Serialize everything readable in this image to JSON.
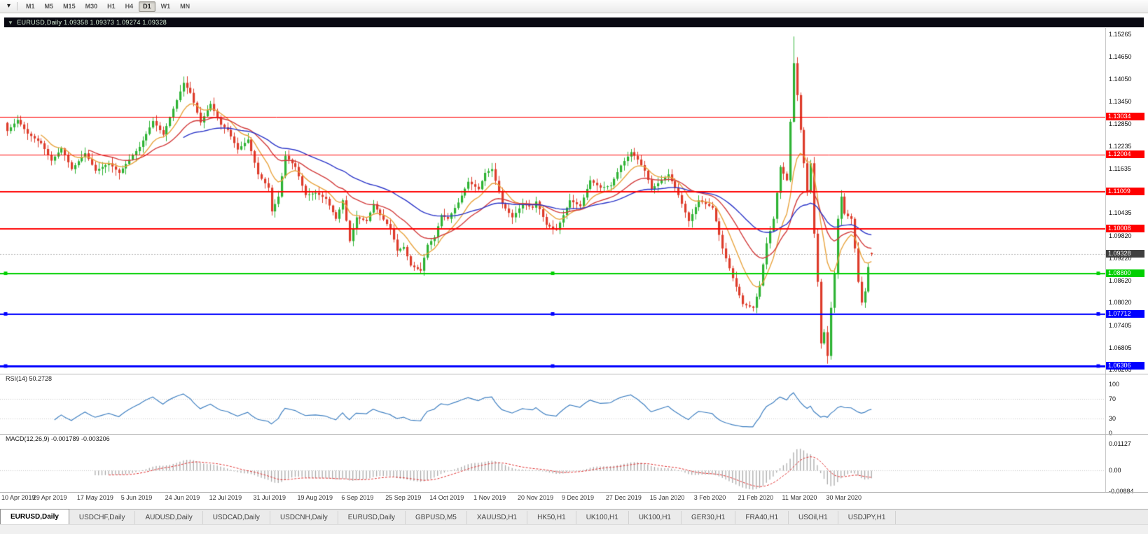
{
  "icons": {
    "toolbar_dropdown": "▾",
    "chart_dropdown": "▼"
  },
  "toolbar": {
    "timeframes": [
      "M1",
      "M5",
      "M15",
      "M30",
      "H1",
      "H4",
      "D1",
      "W1",
      "MN"
    ],
    "active_timeframe": "D1"
  },
  "chart_title": "EURUSD,Daily 1.09358 1.09373 1.09274 1.09328",
  "chart_data": {
    "type": "candlestick",
    "symbol": "EURUSD",
    "timeframe": "Daily",
    "last_bar": {
      "open": 1.09358,
      "high": 1.09373,
      "low": 1.09274,
      "close": 1.09328
    },
    "bar_count": 256,
    "price_range": [
      1.061,
      1.1543
    ],
    "candle_up_color": "#2eb334",
    "candle_down_color": "#dd3b2a",
    "y_ticks": [
      "1.15265",
      "1.14650",
      "1.14050",
      "1.13450",
      "1.12850",
      "1.12235",
      "1.11635",
      "1.11035",
      "1.10435",
      "1.09820",
      "1.09220",
      "1.08620",
      "1.08020",
      "1.07405",
      "1.06805",
      "1.06205"
    ],
    "x_labels": [
      {
        "text": "10 Apr 2019",
        "bar": 0
      },
      {
        "text": "29 Apr 2019",
        "bar": 13
      },
      {
        "text": "17 May 2019",
        "bar": 26
      },
      {
        "text": "5 Jun 2019",
        "bar": 39
      },
      {
        "text": "24 Jun 2019",
        "bar": 52
      },
      {
        "text": "12 Jul 2019",
        "bar": 65
      },
      {
        "text": "31 Jul 2019",
        "bar": 78
      },
      {
        "text": "19 Aug 2019",
        "bar": 91
      },
      {
        "text": "6 Sep 2019",
        "bar": 104
      },
      {
        "text": "25 Sep 2019",
        "bar": 117
      },
      {
        "text": "14 Oct 2019",
        "bar": 130
      },
      {
        "text": "1 Nov 2019",
        "bar": 143
      },
      {
        "text": "20 Nov 2019",
        "bar": 156
      },
      {
        "text": "9 Dec 2019",
        "bar": 169
      },
      {
        "text": "27 Dec 2019",
        "bar": 182
      },
      {
        "text": "15 Jan 2020",
        "bar": 195
      },
      {
        "text": "3 Feb 2020",
        "bar": 208
      },
      {
        "text": "21 Feb 2020",
        "bar": 221
      },
      {
        "text": "11 Mar 2020",
        "bar": 234
      },
      {
        "text": "30 Mar 2020",
        "bar": 247
      }
    ],
    "horizontal_lines": [
      {
        "value": 1.13034,
        "label": "1.13034",
        "color": "#ff0000",
        "width": 1,
        "handles": false
      },
      {
        "value": 1.12004,
        "label": "1.12004",
        "color": "#ff0000",
        "width": 1,
        "handles": false
      },
      {
        "value": 1.11009,
        "label": "1.11009",
        "color": "#ff0000",
        "width": 2,
        "handles": false
      },
      {
        "value": 1.10008,
        "label": "1.10008",
        "color": "#ff0000",
        "width": 2,
        "handles": false
      },
      {
        "value": 1.088,
        "label": "1.08800",
        "color": "#00d000",
        "width": 2,
        "handles": true
      },
      {
        "value": 1.07712,
        "label": "1.07712",
        "color": "#0000ff",
        "width": 2,
        "handles": true
      },
      {
        "value": 1.06306,
        "label": "1.06306",
        "color": "#0000ff",
        "width": 3,
        "handles": true
      }
    ],
    "bid": {
      "value": 1.09328,
      "label": "1.09328",
      "badge_color": "#3f3f3f"
    },
    "moving_averages": [
      {
        "period": 10,
        "color": "#e8a33d"
      },
      {
        "period": 24,
        "color": "#d23b3b"
      },
      {
        "period": 52,
        "color": "#2b35c8"
      }
    ],
    "close_waypoints": [
      [
        0,
        1.1265
      ],
      [
        3,
        1.1295
      ],
      [
        6,
        1.1258
      ],
      [
        10,
        1.1232
      ],
      [
        13,
        1.1185
      ],
      [
        16,
        1.1218
      ],
      [
        19,
        1.1162
      ],
      [
        23,
        1.1205
      ],
      [
        26,
        1.1158
      ],
      [
        30,
        1.1178
      ],
      [
        33,
        1.1152
      ],
      [
        36,
        1.1188
      ],
      [
        39,
        1.1222
      ],
      [
        43,
        1.1292
      ],
      [
        46,
        1.1255
      ],
      [
        49,
        1.1325
      ],
      [
        52,
        1.1395
      ],
      [
        54,
        1.1368
      ],
      [
        57,
        1.1288
      ],
      [
        60,
        1.1338
      ],
      [
        63,
        1.1282
      ],
      [
        65,
        1.1268
      ],
      [
        68,
        1.1215
      ],
      [
        71,
        1.1242
      ],
      [
        74,
        1.1148
      ],
      [
        77,
        1.1112
      ],
      [
        78,
        1.1048
      ],
      [
        80,
        1.1088
      ],
      [
        82,
        1.1198
      ],
      [
        85,
        1.1168
      ],
      [
        88,
        1.1092
      ],
      [
        91,
        1.1098
      ],
      [
        94,
        1.1082
      ],
      [
        97,
        1.1028
      ],
      [
        99,
        1.1078
      ],
      [
        101,
        1.0968
      ],
      [
        103,
        1.1032
      ],
      [
        106,
        1.1022
      ],
      [
        108,
        1.1068
      ],
      [
        110,
        1.1038
      ],
      [
        113,
        1.1002
      ],
      [
        115,
        1.0942
      ],
      [
        117,
        1.0952
      ],
      [
        119,
        1.0902
      ],
      [
        122,
        1.0888
      ],
      [
        124,
        1.0958
      ],
      [
        126,
        1.0978
      ],
      [
        128,
        1.1038
      ],
      [
        130,
        1.1028
      ],
      [
        133,
        1.1072
      ],
      [
        136,
        1.1128
      ],
      [
        139,
        1.1108
      ],
      [
        141,
        1.1152
      ],
      [
        143,
        1.1162
      ],
      [
        146,
        1.1068
      ],
      [
        149,
        1.1032
      ],
      [
        152,
        1.1068
      ],
      [
        155,
        1.1058
      ],
      [
        156,
        1.1075
      ],
      [
        159,
        1.1012
      ],
      [
        162,
        1.0998
      ],
      [
        163,
        1.1018
      ],
      [
        166,
        1.1078
      ],
      [
        169,
        1.1062
      ],
      [
        172,
        1.1132
      ],
      [
        175,
        1.1112
      ],
      [
        178,
        1.1118
      ],
      [
        181,
        1.1172
      ],
      [
        184,
        1.1208
      ],
      [
        186,
        1.1188
      ],
      [
        188,
        1.1158
      ],
      [
        190,
        1.1108
      ],
      [
        193,
        1.1132
      ],
      [
        195,
        1.1148
      ],
      [
        198,
        1.1092
      ],
      [
        201,
        1.1022
      ],
      [
        204,
        1.1078
      ],
      [
        208,
        1.1058
      ],
      [
        211,
        1.0948
      ],
      [
        214,
        1.0868
      ],
      [
        217,
        1.0798
      ],
      [
        220,
        1.0788
      ],
      [
        222,
        1.0848
      ],
      [
        224,
        1.0962
      ],
      [
        226,
        1.1028
      ],
      [
        228,
        1.1168
      ],
      [
        230,
        1.1132
      ],
      [
        232,
        1.1448
      ],
      [
        233,
        1.1362
      ],
      [
        234,
        1.1268
      ],
      [
        235,
        1.1178
      ],
      [
        236,
        1.1102
      ],
      [
        237,
        1.1178
      ],
      [
        238,
        1.0988
      ],
      [
        239,
        1.0858
      ],
      [
        240,
        1.0692
      ],
      [
        241,
        1.0722
      ],
      [
        242,
        1.0658
      ],
      [
        243,
        1.0788
      ],
      [
        244,
        1.0882
      ],
      [
        245,
        1.1028
      ],
      [
        246,
        1.1088
      ],
      [
        247,
        1.1042
      ],
      [
        249,
        1.1028
      ],
      [
        250,
        1.0948
      ],
      [
        251,
        1.0858
      ],
      [
        252,
        1.0802
      ],
      [
        253,
        1.0832
      ],
      [
        254,
        1.0898
      ],
      [
        255,
        1.09328
      ]
    ],
    "extremes": {
      "52": {
        "high": 1.1412
      },
      "122": {
        "low": 1.0879
      },
      "220": {
        "low": 1.0778
      },
      "232": {
        "high": 1.152
      },
      "242": {
        "low": 1.0637
      }
    }
  },
  "indicators": {
    "rsi": {
      "header": "RSI(14) 50.2728",
      "period": 14,
      "current": 50.2728,
      "range": [
        0,
        100
      ],
      "levels": [
        70,
        30
      ],
      "color": "#3e7fc1",
      "ticks": [
        {
          "text": "100",
          "value": 100
        },
        {
          "text": "70",
          "value": 70
        },
        {
          "text": "30",
          "value": 30
        },
        {
          "text": "0",
          "value": 0
        }
      ]
    },
    "macd": {
      "header": "MACD(12,26,9) -0.001789 -0.003206",
      "fast": 12,
      "slow": 26,
      "signal": 9,
      "current_macd": -0.001789,
      "current_signal": -0.003206,
      "range": [
        -0.00884,
        0.01127
      ],
      "histogram_color": "#a9a9a9",
      "signal_color": "#e03030",
      "ticks": [
        {
          "text": "0.01127",
          "value": 0.01127
        },
        {
          "text": "0.00",
          "value": 0
        },
        {
          "text": "-0.00884",
          "value": -0.00884
        }
      ]
    }
  },
  "tabs": [
    {
      "label": "EURUSD,Daily",
      "active": true
    },
    {
      "label": "USDCHF,Daily",
      "active": false
    },
    {
      "label": "AUDUSD,Daily",
      "active": false
    },
    {
      "label": "USDCAD,Daily",
      "active": false
    },
    {
      "label": "USDCNH,Daily",
      "active": false
    },
    {
      "label": "EURUSD,Daily",
      "active": false
    },
    {
      "label": "GBPUSD,M5",
      "active": false
    },
    {
      "label": "XAUUSD,H1",
      "active": false
    },
    {
      "label": "HK50,H1",
      "active": false
    },
    {
      "label": "UK100,H1",
      "active": false
    },
    {
      "label": "UK100,H1",
      "active": false
    },
    {
      "label": "GER30,H1",
      "active": false
    },
    {
      "label": "FRA40,H1",
      "active": false
    },
    {
      "label": "USOil,H1",
      "active": false
    },
    {
      "label": "USDJPY,H1",
      "active": false
    }
  ]
}
